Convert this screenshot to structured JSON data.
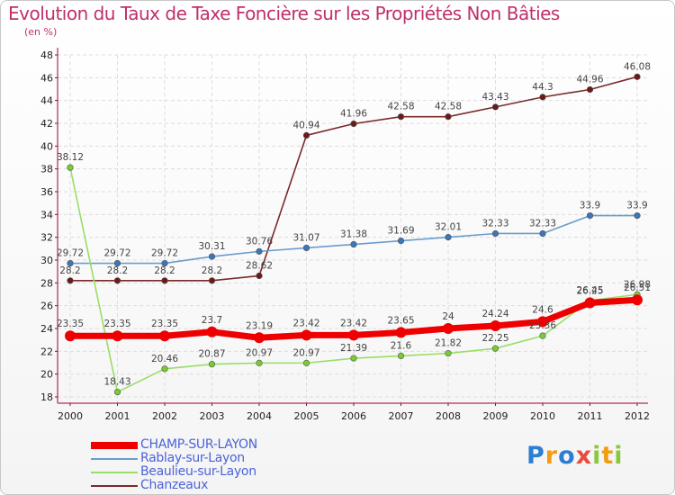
{
  "title": "Evolution du Taux de Taxe Foncière sur les Propriétés Non Bâties",
  "subtitle": "(en %)",
  "logo": {
    "text": "Proxiti",
    "colors": [
      "#2a7fd4",
      "#f39c12",
      "#2a7fd4",
      "#e74c3c",
      "#8dc63f",
      "#f39c12",
      "#8dc63f"
    ]
  },
  "chart_data": {
    "type": "line",
    "x": [
      2000,
      2001,
      2002,
      2003,
      2004,
      2005,
      2006,
      2007,
      2008,
      2009,
      2010,
      2011,
      2012
    ],
    "ylim": [
      18,
      48
    ],
    "yticks": [
      18,
      20,
      22,
      24,
      26,
      28,
      30,
      32,
      34,
      36,
      38,
      40,
      42,
      44,
      46,
      48
    ],
    "grid": true,
    "legend": "bottom-left",
    "series": [
      {
        "name": "Chanzeaux",
        "color": "#7b2a2a",
        "dot": "#6b1a1a",
        "values": [
          28.2,
          28.2,
          28.2,
          28.2,
          28.62,
          40.94,
          41.96,
          42.58,
          42.58,
          43.43,
          44.3,
          44.96,
          46.08
        ],
        "labels": [
          "28.2",
          "28.2",
          "28.2",
          "28.2",
          "28.62",
          "40.94",
          "41.96",
          "42.58",
          "42.58",
          "43.43",
          "44.3",
          "44.96",
          "46.08"
        ]
      },
      {
        "name": "Rablay-sur-Layon",
        "color": "#6b9ccc",
        "dot": "#3a76b8",
        "values": [
          29.72,
          29.72,
          29.72,
          30.31,
          30.76,
          31.07,
          31.38,
          31.69,
          32.01,
          32.33,
          32.33,
          33.9,
          33.9
        ],
        "labels": [
          "29.72",
          "29.72",
          "29.72",
          "30.31",
          "30.76",
          "31.07",
          "31.38",
          "31.69",
          "32.01",
          "32.33",
          "32.33",
          "33.9",
          "33.9"
        ]
      },
      {
        "name": "Beaulieu-sur-Layon",
        "color": "#99dd66",
        "dot": "#77cc33",
        "values": [
          38.12,
          18.43,
          20.46,
          20.87,
          20.97,
          20.97,
          21.39,
          21.6,
          21.82,
          22.25,
          23.36,
          26.45,
          26.98
        ],
        "labels": [
          "38.12",
          "18.43",
          "20.46",
          "20.87",
          "20.97",
          "20.97",
          "21.39",
          "21.6",
          "21.82",
          "22.25",
          "23.36",
          "26.45",
          "26.98"
        ]
      },
      {
        "name": "CHAMP-SUR-LAYON",
        "color": "#ee0000",
        "dot": "#ee0000",
        "thick": true,
        "values": [
          23.35,
          23.35,
          23.35,
          23.7,
          23.19,
          23.42,
          23.42,
          23.65,
          24,
          24.24,
          24.6,
          26.25,
          26.51
        ],
        "labels": [
          "23.35",
          "23.35",
          "23.35",
          "23.7",
          "23.19",
          "23.42",
          "23.42",
          "23.65",
          "24",
          "24.24",
          "24.6",
          "26.25",
          "26.51"
        ]
      }
    ]
  }
}
